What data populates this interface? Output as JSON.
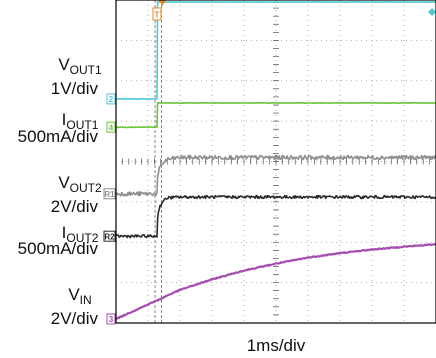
{
  "chart_data": {
    "type": "line",
    "x_scale": "1ms/div",
    "x_divisions": 10,
    "y_divisions": 8,
    "trigger_marker": "T",
    "x_ms": [
      0,
      1.25,
      1.28,
      1.3,
      1.35,
      1.45,
      1.6,
      2,
      3,
      4,
      5,
      6,
      7,
      8,
      9,
      10
    ],
    "y_unit": "div",
    "series": [
      {
        "id": "ch2",
        "marker": "2",
        "color": "#4FC9D8",
        "name_main": "V",
        "name_sub": "OUT1",
        "scale": "1V/div",
        "values": [
          5.55,
          5.55,
          5.55,
          7.95,
          7.95,
          7.95,
          7.95,
          7.95,
          7.95,
          7.95,
          7.95,
          7.95,
          7.95,
          7.95,
          7.95,
          7.95
        ]
      },
      {
        "id": "ch4",
        "marker": "4",
        "color": "#6CC43A",
        "name_main": "I",
        "name_sub": "OUT1",
        "scale": "500mA/div",
        "values": [
          4.85,
          4.85,
          4.85,
          5.45,
          5.45,
          5.45,
          5.45,
          5.45,
          5.45,
          5.45,
          5.45,
          5.45,
          5.45,
          5.45,
          5.45,
          5.45
        ]
      },
      {
        "id": "r1",
        "marker": "R1",
        "color": "#8F8F8F",
        "name_main": "V",
        "name_sub": "OUT2",
        "scale": "2V/div",
        "values": [
          3.2,
          3.2,
          3.2,
          3.6,
          3.8,
          3.95,
          4.05,
          4.1,
          4.1,
          4.1,
          4.1,
          4.1,
          4.1,
          4.1,
          4.1,
          4.1
        ]
      },
      {
        "id": "r2",
        "marker": "R2",
        "color": "#2A2A2A",
        "name_main": "I",
        "name_sub": "OUT2",
        "scale": "500mA/div",
        "values": [
          2.15,
          2.15,
          2.15,
          2.6,
          2.85,
          3.0,
          3.1,
          3.12,
          3.12,
          3.12,
          3.12,
          3.12,
          3.12,
          3.12,
          3.12,
          3.12
        ]
      },
      {
        "id": "ch3",
        "marker": "3",
        "color": "#A54DB0",
        "name_main": "V",
        "name_sub": "IN",
        "scale": "2V/div",
        "values": [
          0.1,
          0.55,
          0.55,
          0.56,
          0.58,
          0.62,
          0.68,
          0.82,
          1.08,
          1.3,
          1.47,
          1.62,
          1.73,
          1.82,
          1.89,
          1.95
        ]
      }
    ]
  }
}
